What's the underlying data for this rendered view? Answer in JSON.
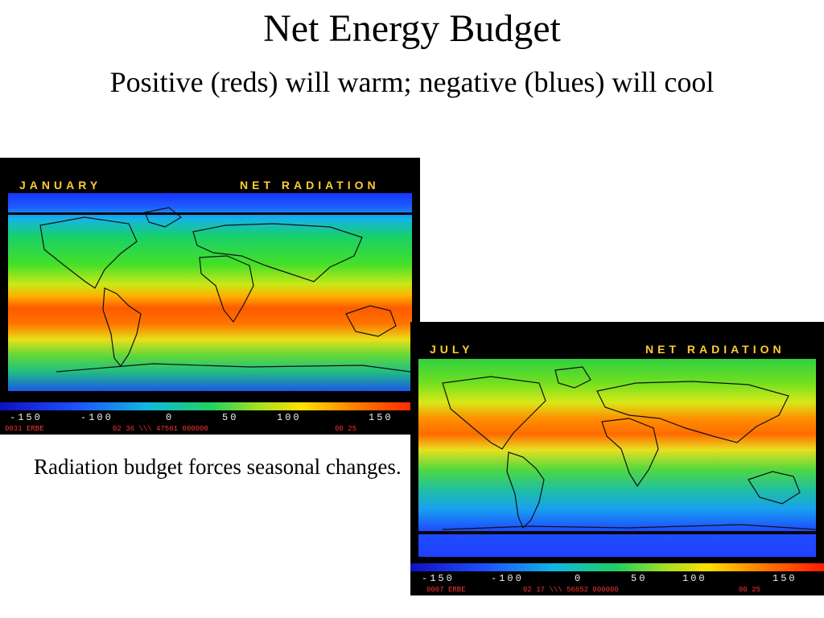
{
  "slide": {
    "title": "Net Energy Budget",
    "subtitle": "Positive (reds) will warm; negative (blues) will cool",
    "caption": "Radiation budget forces seasonal changes."
  },
  "maps": {
    "january": {
      "month": "JANUARY",
      "label": "NET RADIATION",
      "scale_ticks": [
        "-150",
        "-100",
        "0",
        "50",
        "100",
        "150"
      ],
      "footer_left": "0031 ERBE",
      "footer_mid": "02 36 \\\\\\ 47561 000000",
      "footer_right": "00 25"
    },
    "july": {
      "month": "JULY",
      "label": "NET RADIATION",
      "scale_ticks": [
        "-150",
        "-100",
        "0",
        "50",
        "100",
        "150"
      ],
      "footer_left": "0007 ERBE",
      "footer_mid": "02 17 \\\\\\ 56652 000000",
      "footer_right": "00 25"
    }
  },
  "colors": {
    "panel_bg": "#000000",
    "header_text": "#ffcc33",
    "scale_gradient": [
      "#1010c0",
      "#1e50ff",
      "#10b8e0",
      "#20d060",
      "#a8e020",
      "#ffe000",
      "#ff7a00",
      "#ff1a00"
    ]
  }
}
